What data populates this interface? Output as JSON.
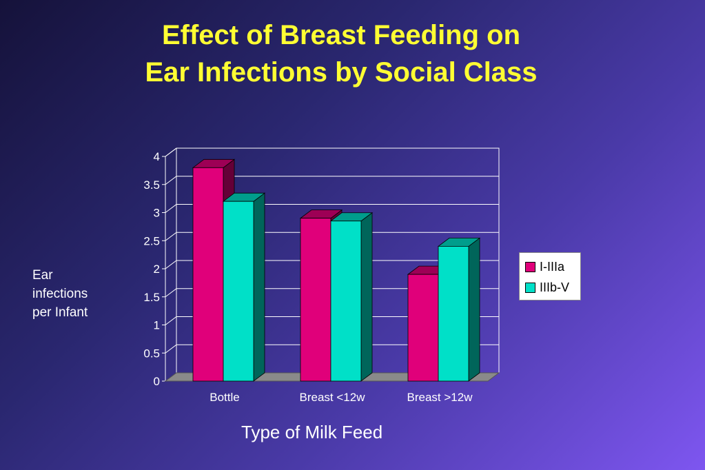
{
  "title_line1": "Effect of Breast Feeding on",
  "title_line2": "Ear Infections by Social Class",
  "colors": {
    "title": "#ffff33",
    "series1": "#e0007a",
    "series2": "#00e0c8",
    "background_start": "#15123a",
    "background_end": "#7e56f0"
  },
  "chart_data": {
    "type": "bar",
    "title": "Effect of Breast Feeding on Ear Infections by Social Class",
    "xlabel": "Type of Milk Feed",
    "ylabel": "Ear\ninfections\nper Infant",
    "categories": [
      "Bottle",
      "Breast <12w",
      "Breast >12w"
    ],
    "series": [
      {
        "name": "I-IIIa",
        "values": [
          3.8,
          2.9,
          1.9
        ],
        "color": "#e0007a"
      },
      {
        "name": "IIIb-V",
        "values": [
          3.2,
          2.85,
          2.4
        ],
        "color": "#00e0c8"
      }
    ],
    "ylim": [
      0,
      4
    ],
    "yticks": [
      "0",
      "0.5",
      "1",
      "1.5",
      "2",
      "2.5",
      "3",
      "3.5",
      "4"
    ],
    "grid": true,
    "legend": "right",
    "style": "3d-clustered-bar"
  }
}
